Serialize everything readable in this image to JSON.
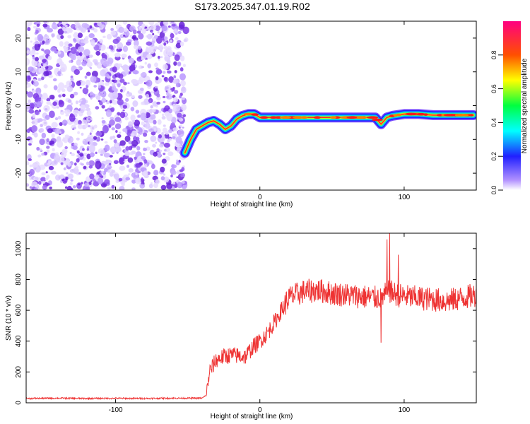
{
  "title": "S173.2025.347.01.19.R02",
  "chart_data": [
    {
      "type": "heatmap",
      "name": "spectrogram",
      "xlabel": "Height of straight line (km)",
      "ylabel": "Frequency (Hz)",
      "xlim": [
        -162,
        150
      ],
      "ylim": [
        -25,
        25
      ],
      "xticks": [
        -100,
        0,
        100
      ],
      "yticks": [
        -20,
        -10,
        0,
        10,
        20
      ],
      "noise_region_x": [
        -162,
        -52
      ],
      "ridge": {
        "x": [
          -52,
          -48,
          -44,
          -40,
          -36,
          -32,
          -28,
          -24,
          -20,
          -16,
          -12,
          -8,
          -4,
          0,
          10,
          20,
          30,
          40,
          50,
          60,
          70,
          80,
          82,
          84,
          86,
          88,
          92,
          100,
          110,
          120,
          130,
          140,
          148
        ],
        "y": [
          -14,
          -10,
          -7,
          -6,
          -5,
          -4.5,
          -5.5,
          -7,
          -6,
          -4,
          -3,
          -2.5,
          -2.5,
          -3.5,
          -3.5,
          -3.5,
          -3.5,
          -3.5,
          -3.5,
          -3.5,
          -3.5,
          -3.5,
          -4.5,
          -5.5,
          -4.5,
          -3.5,
          -3,
          -2.5,
          -2.5,
          -2.8,
          -2.8,
          -2.8,
          -2.8
        ]
      },
      "colorbar": {
        "label": "Normalized spectral amplitude",
        "range": [
          0,
          1
        ],
        "ticks": [
          "0.0",
          "0.2",
          "0.4",
          "0.6",
          "0.8"
        ],
        "tick_values": [
          0.0,
          0.2,
          0.4,
          0.6,
          0.8
        ]
      }
    },
    {
      "type": "line",
      "name": "snr",
      "xlabel": "Height of straight line (km)",
      "ylabel": "SNR (10 * v/v)",
      "xlim": [
        -162,
        150
      ],
      "ylim": [
        0,
        1100
      ],
      "xticks": [
        -100,
        0,
        100
      ],
      "yticks": [
        0,
        200,
        400,
        600,
        800,
        1000
      ],
      "color": "#ee3333",
      "envelope": {
        "x": [
          -162,
          -140,
          -120,
          -100,
          -80,
          -60,
          -40,
          -37,
          -35,
          -30,
          -25,
          -20,
          -15,
          -10,
          -5,
          0,
          5,
          10,
          15,
          20,
          25,
          30,
          40,
          50,
          60,
          70,
          80,
          85,
          90,
          95,
          100,
          110,
          120,
          130,
          140,
          150
        ],
        "y": [
          28,
          30,
          28,
          29,
          28,
          30,
          30,
          50,
          200,
          280,
          300,
          310,
          305,
          300,
          360,
          400,
          450,
          520,
          600,
          680,
          700,
          720,
          730,
          710,
          700,
          690,
          680,
          690,
          720,
          700,
          690,
          680,
          670,
          660,
          680,
          700
        ]
      },
      "spikes": [
        {
          "x": 88,
          "y": 1060
        },
        {
          "x": 90,
          "y": 1100
        },
        {
          "x": 84,
          "y": 390
        },
        {
          "x": 96,
          "y": 960
        }
      ]
    }
  ]
}
